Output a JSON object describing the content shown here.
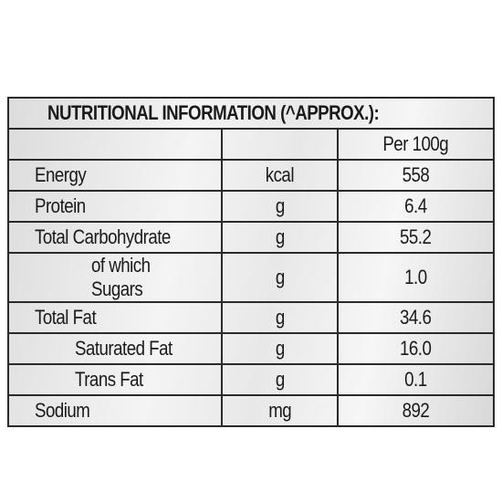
{
  "title": "NUTRITIONAL INFORMATION (^APPROX.):",
  "header": {
    "per": "Per 100g"
  },
  "rows": [
    [
      "Energy",
      "kcal",
      "558"
    ],
    [
      "Protein",
      "g",
      "6.4"
    ],
    [
      "Total Carbohydrate",
      "g",
      "55.2"
    ],
    [
      "of which Sugars",
      "g",
      "1.0"
    ],
    [
      "Total Fat",
      "g",
      "34.6"
    ],
    [
      "Saturated Fat",
      "g",
      "16.0"
    ],
    [
      "Trans Fat",
      "g",
      "0.1"
    ],
    [
      "Sodium",
      "mg",
      "892"
    ]
  ]
}
